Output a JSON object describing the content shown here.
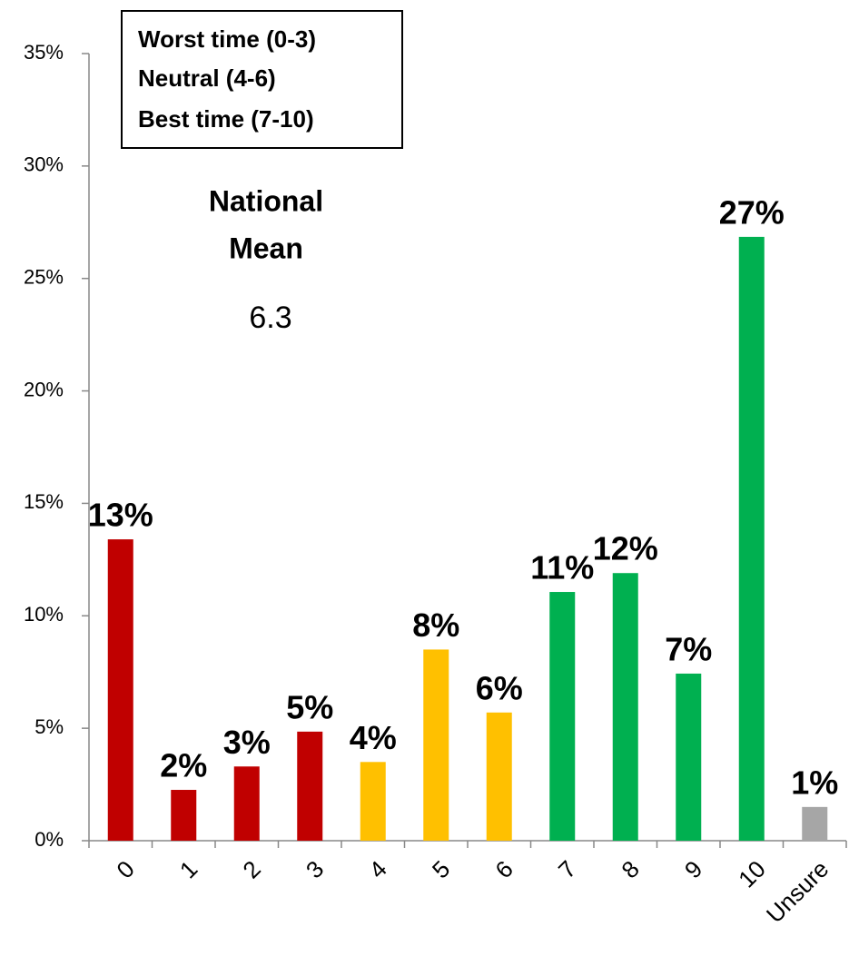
{
  "chart_data": {
    "type": "bar",
    "categories": [
      "0",
      "1",
      "2",
      "3",
      "4",
      "5",
      "6",
      "7",
      "8",
      "9",
      "10",
      "Unsure"
    ],
    "values": [
      13.4,
      2.26,
      3.3,
      4.85,
      3.5,
      8.5,
      5.7,
      11.06,
      11.9,
      7.43,
      26.85,
      1.5
    ],
    "value_labels": [
      "13%",
      "2%",
      "3%",
      "5%",
      "4%",
      "8%",
      "6%",
      "11%",
      "12%",
      "7%",
      "27%",
      "1%"
    ],
    "colors": [
      "#c00000",
      "#c00000",
      "#c00000",
      "#c00000",
      "#ffc000",
      "#ffc000",
      "#ffc000",
      "#00b050",
      "#00b050",
      "#00b050",
      "#00b050",
      "#a6a6a6"
    ],
    "ylim": [
      0,
      35
    ],
    "yticks": [
      {
        "value": 0,
        "label": "0%"
      },
      {
        "value": 5,
        "label": "5%"
      },
      {
        "value": 10,
        "label": "10%"
      },
      {
        "value": 15,
        "label": "15%"
      },
      {
        "value": 20,
        "label": "20%"
      },
      {
        "value": 25,
        "label": "25%"
      },
      {
        "value": 30,
        "label": "30%"
      },
      {
        "value": 35,
        "label": "35%"
      }
    ],
    "legend_box": [
      "Worst time (0-3)",
      "Neutral (4-6)",
      "Best time (7-10)"
    ],
    "annotation": {
      "title": [
        "National",
        "Mean"
      ],
      "value": 6.3
    }
  }
}
